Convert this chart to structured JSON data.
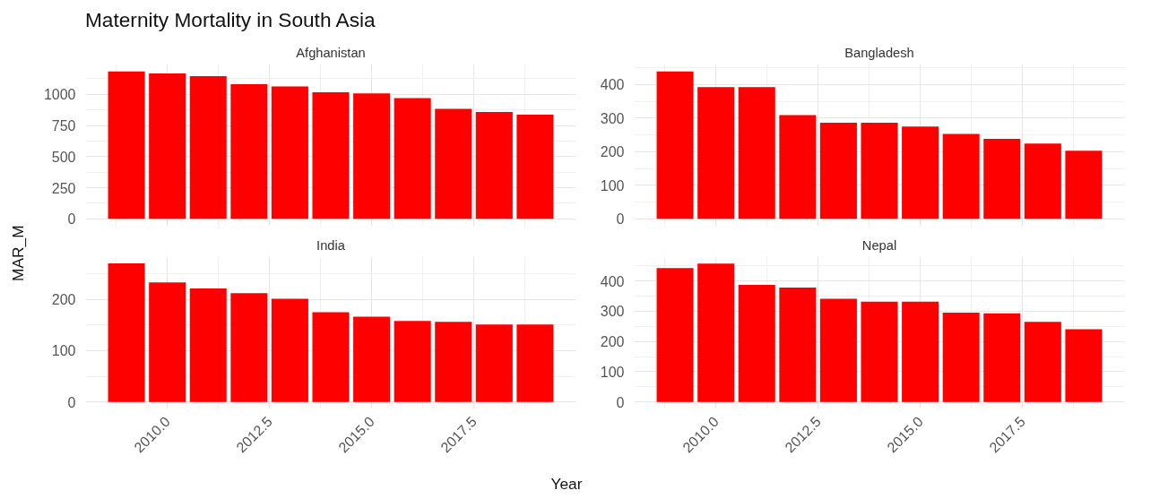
{
  "chart_data": [
    {
      "type": "bar",
      "title": "Afghanistan",
      "annotations": [
        "Maternity Mortality in South Asia"
      ],
      "ylabel": "MAR_M",
      "x": [
        2009,
        2010,
        2011,
        2012,
        2013,
        2014,
        2015,
        2016,
        2017,
        2018,
        2019
      ],
      "values": [
        1184,
        1167,
        1145,
        1081,
        1064,
        1017,
        1008,
        969,
        883,
        858,
        836
      ],
      "color": "#ff0000",
      "xlim": [
        2008.0,
        2020.0
      ],
      "xticks": [
        2010,
        2012.5,
        2015,
        2017.5
      ],
      "ylim": [
        -59,
        1243
      ],
      "yticks": [
        0,
        250,
        500,
        750,
        1000
      ],
      "grid": true,
      "tick_labels": "y"
    },
    {
      "type": "bar",
      "title": "Bangladesh",
      "x": [
        2009,
        2010,
        2011,
        2012,
        2013,
        2014,
        2015,
        2016,
        2017,
        2018,
        2019
      ],
      "values": [
        439,
        392,
        392,
        309,
        286,
        286,
        275,
        253,
        238,
        224,
        203
      ],
      "color": "#ff0000",
      "xlim": [
        2008.0,
        2020.0
      ],
      "xticks": [
        2010,
        2012.5,
        2015,
        2017.5
      ],
      "ylim": [
        -22,
        461
      ],
      "yticks": [
        0,
        100,
        200,
        300,
        400
      ],
      "grid": true,
      "tick_labels": "y"
    },
    {
      "type": "bar",
      "title": "India",
      "xlabel": "Year",
      "x": [
        2009,
        2010,
        2011,
        2012,
        2013,
        2014,
        2015,
        2016,
        2017,
        2018,
        2019
      ],
      "values": [
        270,
        233,
        221,
        212,
        201,
        175,
        166,
        158,
        156,
        151,
        151
      ],
      "color": "#ff0000",
      "xlim": [
        2008.0,
        2020.0
      ],
      "xticks": [
        {
          "value": 2010,
          "label": "2010.0"
        },
        {
          "value": 2012.5,
          "label": "2012.5"
        },
        {
          "value": 2015,
          "label": "2015.0"
        },
        {
          "value": 2017.5,
          "label": "2017.5"
        }
      ],
      "ylim": [
        -13.5,
        283
      ],
      "yticks": [
        0,
        100,
        200
      ],
      "grid": true
    },
    {
      "type": "bar",
      "title": "Nepal",
      "x": [
        2009,
        2010,
        2011,
        2012,
        2013,
        2014,
        2015,
        2016,
        2017,
        2018,
        2019
      ],
      "values": [
        442,
        457,
        387,
        378,
        341,
        331,
        331,
        295,
        293,
        265,
        240
      ],
      "color": "#ff0000",
      "xlim": [
        2008.0,
        2020.0
      ],
      "xticks": [
        {
          "value": 2010,
          "label": "2010.0"
        },
        {
          "value": 2012.5,
          "label": "2012.5"
        },
        {
          "value": 2015,
          "label": "2015.0"
        },
        {
          "value": 2017.5,
          "label": "2017.5"
        }
      ],
      "ylim": [
        -23,
        480
      ],
      "yticks": [
        0,
        100,
        200,
        300,
        400
      ],
      "grid": true
    }
  ]
}
